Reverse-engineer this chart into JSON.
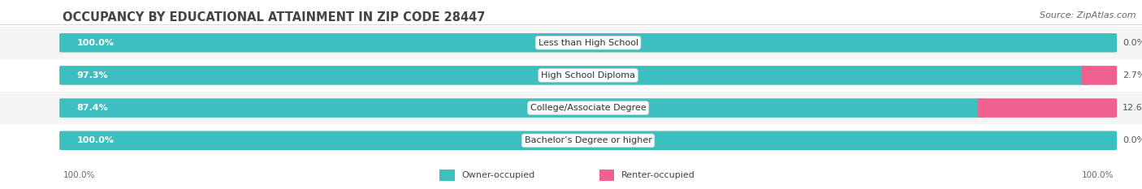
{
  "title": "OCCUPANCY BY EDUCATIONAL ATTAINMENT IN ZIP CODE 28447",
  "source": "Source: ZipAtlas.com",
  "categories": [
    "Less than High School",
    "High School Diploma",
    "College/Associate Degree",
    "Bachelor’s Degree or higher"
  ],
  "owner_pct": [
    100.0,
    97.3,
    87.4,
    100.0
  ],
  "renter_pct": [
    0.0,
    2.7,
    12.6,
    0.0
  ],
  "owner_color": "#3dbfbf",
  "renter_color_dark": "#f06090",
  "renter_color_light": "#f4afc8",
  "bg_color": "#ffffff",
  "row_bg_even": "#f5f5f5",
  "row_bg_odd": "#ffffff",
  "bar_track_color": "#e5e5e5",
  "title_fontsize": 10.5,
  "source_fontsize": 8,
  "label_fontsize": 8,
  "bar_label_fontsize": 8,
  "figsize": [
    14.06,
    2.33
  ]
}
